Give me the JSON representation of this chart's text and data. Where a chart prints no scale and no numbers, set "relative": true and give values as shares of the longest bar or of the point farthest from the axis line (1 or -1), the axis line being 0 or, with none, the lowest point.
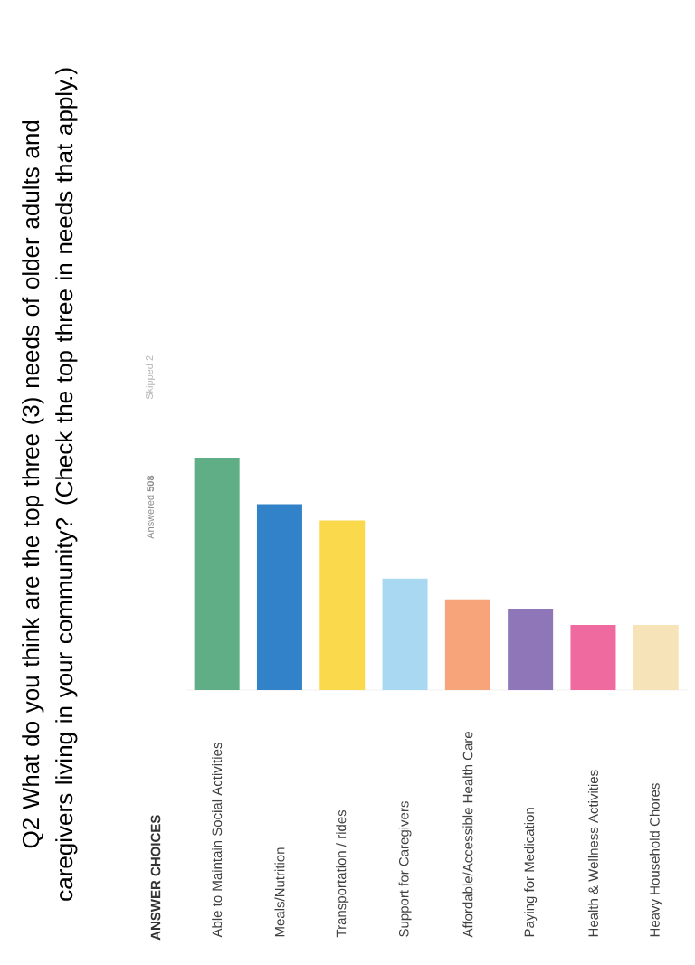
{
  "chart_data": {
    "type": "bar",
    "relative": true,
    "title": "Q2 What do you think are the top three (3) needs of older adults and caregivers living in your community? (Check the top three in needs that apply.)",
    "annotations": [
      "ANSWER CHOICES",
      "Answered **508**",
      "Skipped 2"
    ],
    "categories": [
      "Able to Maintain Social Activities",
      "Meals/Nutrition",
      "Transportation / rides",
      "Support for Caregivers",
      "Affordable/Accessible Health Care",
      "Paying for Medication",
      "Health & Wellness Activities",
      "Heavy  Household Chores"
    ],
    "values": [
      1,
      0.8,
      0.73,
      0.48,
      0.39,
      0.35,
      0.28,
      0.28
    ],
    "colors": [
      "#5fae85",
      "#3182c8",
      "#fbd94c",
      "#a9d9f2",
      "#f8a47a",
      "#8e76b8",
      "#ee6a9f",
      "#f6e4b8"
    ]
  }
}
